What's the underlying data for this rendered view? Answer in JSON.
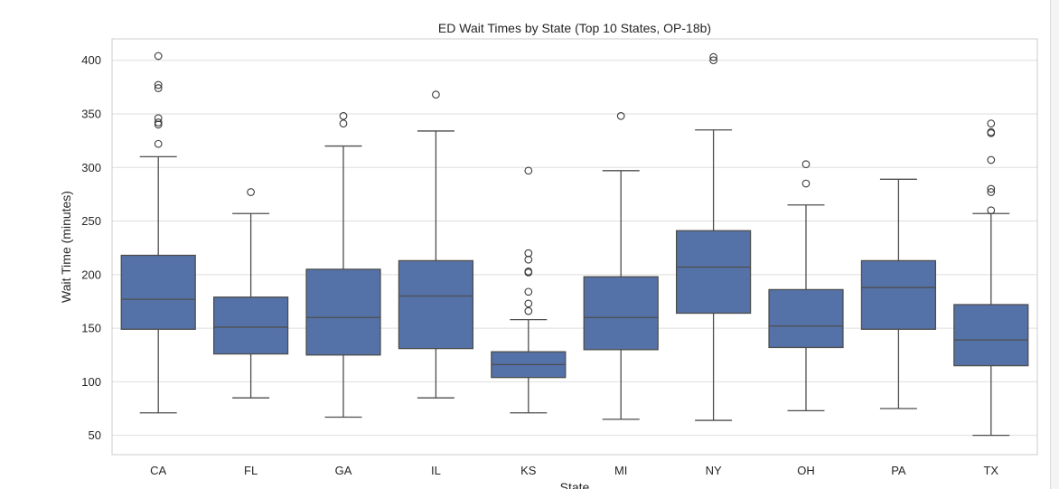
{
  "chart_data": {
    "type": "boxplot",
    "title": "ED Wait Times by State (Top 10 States, OP-18b)",
    "xlabel": "State",
    "ylabel": "Wait Time (minutes)",
    "ylim": [
      32,
      420
    ],
    "yticks": [
      50,
      100,
      150,
      200,
      250,
      300,
      350,
      400
    ],
    "grid": true,
    "box_color": "#5572a8",
    "categories": [
      "CA",
      "FL",
      "GA",
      "IL",
      "KS",
      "MI",
      "NY",
      "OH",
      "PA",
      "TX"
    ],
    "boxes": [
      {
        "state": "CA",
        "whisker_low": 71,
        "q1": 149,
        "median": 177,
        "q3": 218,
        "whisker_high": 310,
        "outliers": [
          322,
          340,
          342,
          346,
          374,
          377,
          404
        ]
      },
      {
        "state": "FL",
        "whisker_low": 85,
        "q1": 126,
        "median": 151,
        "q3": 179,
        "whisker_high": 257,
        "outliers": [
          277
        ]
      },
      {
        "state": "GA",
        "whisker_low": 67,
        "q1": 125,
        "median": 160,
        "q3": 205,
        "whisker_high": 320,
        "outliers": [
          341,
          348
        ]
      },
      {
        "state": "IL",
        "whisker_low": 85,
        "q1": 131,
        "median": 180,
        "q3": 213,
        "whisker_high": 334,
        "outliers": [
          368
        ]
      },
      {
        "state": "KS",
        "whisker_low": 71,
        "q1": 104,
        "median": 116,
        "q3": 128,
        "whisker_high": 158,
        "outliers": [
          166,
          173,
          184,
          202,
          203,
          214,
          220,
          297
        ]
      },
      {
        "state": "MI",
        "whisker_low": 65,
        "q1": 130,
        "median": 160,
        "q3": 198,
        "whisker_high": 297,
        "outliers": [
          348
        ]
      },
      {
        "state": "NY",
        "whisker_low": 64,
        "q1": 164,
        "median": 207,
        "q3": 241,
        "whisker_high": 335,
        "outliers": [
          400,
          403
        ]
      },
      {
        "state": "OH",
        "whisker_low": 73,
        "q1": 132,
        "median": 152,
        "q3": 186,
        "whisker_high": 265,
        "outliers": [
          285,
          303
        ]
      },
      {
        "state": "PA",
        "whisker_low": 75,
        "q1": 149,
        "median": 188,
        "q3": 213,
        "whisker_high": 289,
        "outliers": []
      },
      {
        "state": "TX",
        "whisker_low": 50,
        "q1": 115,
        "median": 139,
        "q3": 172,
        "whisker_high": 257,
        "outliers": [
          260,
          277,
          280,
          307,
          332,
          333,
          341
        ]
      }
    ]
  }
}
